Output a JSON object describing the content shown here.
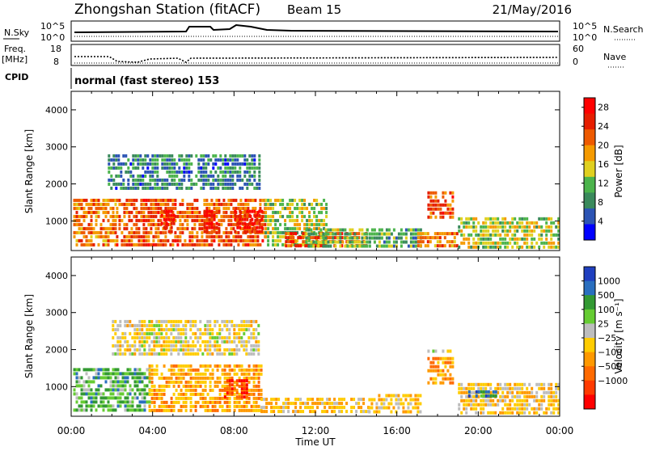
{
  "header": {
    "station": "Zhongshan Station (fitACF)",
    "beam": "Beam 15",
    "date": "21/May/2016"
  },
  "summary_panels": {
    "nsky": {
      "label": "N.Sky",
      "ticks": [
        "10^5",
        "10^0"
      ]
    },
    "nsearch": {
      "label": "N.Search",
      "ticks": [
        "10^5",
        "10^0"
      ]
    },
    "freq": {
      "label_1": "Freq.",
      "label_2": "[MHz]",
      "ticks": [
        "18",
        "8"
      ]
    },
    "nave": {
      "label": "Nave",
      "ticks": [
        "60",
        "0"
      ]
    },
    "cpid": {
      "label": "CPID",
      "value": "normal (fast stereo) 153"
    }
  },
  "colors": {
    "power": [
      "#0000ff",
      "#2c54b4",
      "#3a8a5c",
      "#4cb44c",
      "#e0d020",
      "#f59a00",
      "#ee5a00",
      "#e61e00",
      "#ff0000"
    ],
    "velocity": [
      "#ff0000",
      "#ff3a00",
      "#ff6a00",
      "#ff9900",
      "#ffcc00",
      "#bdbdbd",
      "#66cc33",
      "#339933",
      "#2a6fbf",
      "#1f3fbf"
    ]
  },
  "chart_data": [
    {
      "type": "heatmap",
      "name": "power",
      "ylabel": "Slant Range [km]",
      "yticks": [
        "1000",
        "2000",
        "3000",
        "4000"
      ],
      "ylim": [
        200,
        4500
      ],
      "xlim": [
        0,
        24
      ],
      "colorbar": {
        "label": "Power [dB]",
        "ticks": [
          "4",
          "8",
          "12",
          "16",
          "20",
          "24",
          "28"
        ],
        "range": [
          0,
          30
        ]
      },
      "regions": [
        {
          "t": [
            0.1,
            2.2
          ],
          "r": [
            300,
            1600
          ],
          "v": 20
        },
        {
          "t": [
            2.2,
            9.5
          ],
          "r": [
            300,
            1600
          ],
          "v": 22
        },
        {
          "t": [
            4.4,
            5.0
          ],
          "r": [
            700,
            1300
          ],
          "v": 28
        },
        {
          "t": [
            6.5,
            7.3
          ],
          "r": [
            700,
            1300
          ],
          "v": 27
        },
        {
          "t": [
            8.0,
            9.4
          ],
          "r": [
            700,
            1300
          ],
          "v": 27
        },
        {
          "t": [
            1.8,
            9.3
          ],
          "r": [
            1900,
            2800
          ],
          "v": 8
        },
        {
          "t": [
            9.5,
            12.5
          ],
          "r": [
            300,
            1600
          ],
          "v": 14
        },
        {
          "t": [
            10.5,
            14.5
          ],
          "r": [
            300,
            700
          ],
          "v": 24
        },
        {
          "t": [
            11.5,
            14.5
          ],
          "r": [
            300,
            800
          ],
          "v": 12
        },
        {
          "t": [
            14.5,
            17.2
          ],
          "r": [
            300,
            800
          ],
          "v": 10
        },
        {
          "t": [
            17.0,
            19.0
          ],
          "r": [
            300,
            700
          ],
          "v": 20
        },
        {
          "t": [
            17.5,
            18.7
          ],
          "r": [
            1100,
            1800
          ],
          "v": 22
        },
        {
          "t": [
            19.0,
            24.0
          ],
          "r": [
            300,
            1100
          ],
          "v": 14
        }
      ]
    },
    {
      "type": "heatmap",
      "name": "velocity",
      "ylabel": "Slant Range [km]",
      "xlabel": "Time UT",
      "xticks": [
        "00:00",
        "04:00",
        "08:00",
        "12:00",
        "16:00",
        "20:00",
        "00:00"
      ],
      "yticks": [
        "1000",
        "2000",
        "3000",
        "4000"
      ],
      "ylim": [
        200,
        4500
      ],
      "xlim": [
        0,
        24
      ],
      "colorbar": {
        "label": "Velocity [m s⁻¹]",
        "ticks": [
          "1000",
          "500",
          "100",
          "25",
          "−25",
          "−100",
          "−500",
          "−1000"
        ],
        "range": [
          -1000,
          1000
        ]
      },
      "regions": [
        {
          "t": [
            0.1,
            3.8
          ],
          "r": [
            300,
            1500
          ],
          "v": 400
        },
        {
          "t": [
            3.8,
            9.3
          ],
          "r": [
            300,
            1600
          ],
          "v": -250
        },
        {
          "t": [
            7.5,
            8.6
          ],
          "r": [
            700,
            1200
          ],
          "v": -700
        },
        {
          "t": [
            2.0,
            9.2
          ],
          "r": [
            1900,
            2800
          ],
          "v": 0
        },
        {
          "t": [
            9.3,
            14.6
          ],
          "r": [
            300,
            700
          ],
          "v": -150
        },
        {
          "t": [
            14.6,
            17.2
          ],
          "r": [
            300,
            800
          ],
          "v": -120
        },
        {
          "t": [
            17.5,
            18.7
          ],
          "r": [
            1100,
            1800
          ],
          "v": -350
        },
        {
          "t": [
            17.5,
            18.7
          ],
          "r": [
            1900,
            2000
          ],
          "v": 60
        },
        {
          "t": [
            19.0,
            24.0
          ],
          "r": [
            300,
            1100
          ],
          "v": -100
        },
        {
          "t": [
            19.5,
            21.0
          ],
          "r": [
            700,
            900
          ],
          "v": 600
        }
      ]
    }
  ]
}
